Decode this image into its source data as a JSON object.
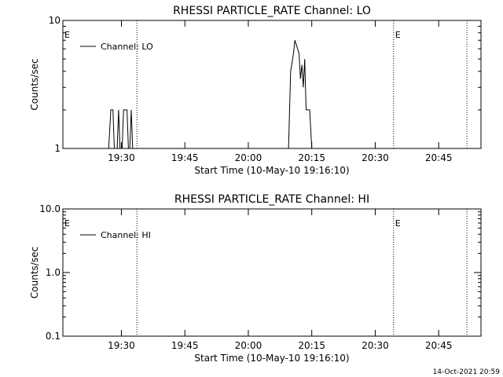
{
  "footer": {
    "timestamp": "14-Oct-2021 20:59"
  },
  "chart_data": [
    {
      "type": "line",
      "title": "RHESSI PARTICLE_RATE Channel: LO",
      "xlabel": "Start Time (10-May-10 19:16:10)",
      "ylabel": "Counts/sec",
      "yscale": "log",
      "ylim": [
        1,
        10
      ],
      "yticks": [
        1,
        10
      ],
      "ytick_labels": [
        "1",
        "10"
      ],
      "xlim": [
        "19:16:10",
        "20:55:00"
      ],
      "xticks": [
        "19:30",
        "19:45",
        "20:00",
        "20:15",
        "20:30",
        "20:45"
      ],
      "legend": {
        "position": "top-left",
        "entries": [
          "Channel: LO"
        ]
      },
      "event_lines": [
        "19:33:40",
        "20:34:20",
        "20:51:40"
      ],
      "event_markers": [
        {
          "label": "E",
          "x": "19:16:10"
        },
        {
          "label": "E",
          "x": "20:34:20"
        }
      ],
      "series": [
        {
          "name": "Channel: LO",
          "points": [
            [
              "19:27:00",
              1
            ],
            [
              "19:27:30",
              2
            ],
            [
              "19:28:00",
              2
            ],
            [
              "19:28:20",
              1
            ],
            [
              "19:29:00",
              1
            ],
            [
              "19:29:20",
              2
            ],
            [
              "19:29:40",
              1
            ],
            [
              "19:30:10",
              1
            ],
            [
              "19:30:30",
              2
            ],
            [
              "19:31:20",
              2
            ],
            [
              "19:31:40",
              1
            ],
            [
              "19:32:00",
              1
            ],
            [
              "19:32:20",
              2
            ],
            [
              "19:32:40",
              1
            ],
            [
              "20:09:30",
              1
            ],
            [
              "20:10:00",
              4
            ],
            [
              "20:10:40",
              5.5
            ],
            [
              "20:11:00",
              7
            ],
            [
              "20:11:40",
              6
            ],
            [
              "20:12:00",
              5.5
            ],
            [
              "20:12:20",
              3.5
            ],
            [
              "20:12:40",
              4.5
            ],
            [
              "20:13:00",
              3
            ],
            [
              "20:13:20",
              5
            ],
            [
              "20:13:40",
              2
            ],
            [
              "20:14:30",
              2
            ],
            [
              "20:15:00",
              1
            ]
          ]
        }
      ]
    },
    {
      "type": "line",
      "title": "RHESSI PARTICLE_RATE Channel: HI",
      "xlabel": "Start Time (10-May-10 19:16:10)",
      "ylabel": "Counts/sec",
      "yscale": "log",
      "ylim": [
        0.1,
        10
      ],
      "yticks": [
        0.1,
        1,
        10
      ],
      "ytick_labels": [
        "0.1",
        "1.0",
        "10.0"
      ],
      "xlim": [
        "19:16:10",
        "20:55:00"
      ],
      "xticks": [
        "19:30",
        "19:45",
        "20:00",
        "20:15",
        "20:30",
        "20:45"
      ],
      "legend": {
        "position": "top-left",
        "entries": [
          "Channel: HI"
        ]
      },
      "event_lines": [
        "19:33:40",
        "20:34:20",
        "20:51:40"
      ],
      "event_markers": [
        {
          "label": "E",
          "x": "19:16:10"
        },
        {
          "label": "E",
          "x": "20:34:20"
        }
      ],
      "series": [
        {
          "name": "Channel: HI",
          "points": []
        }
      ]
    }
  ]
}
